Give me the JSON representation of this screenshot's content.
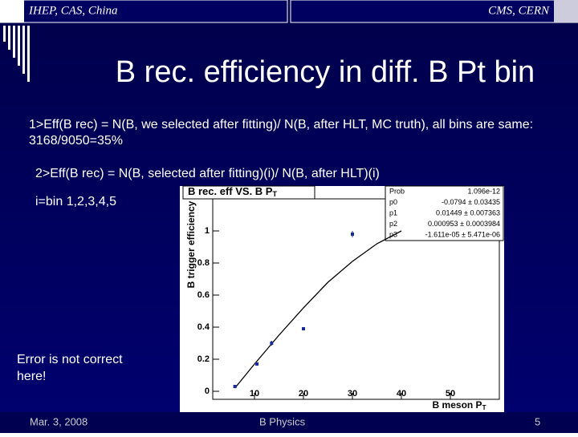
{
  "header": {
    "left": "IHEP, CAS, China",
    "right": "CMS, CERN"
  },
  "title": "B rec. efficiency in diff. B Pt bin",
  "bullets": [
    "1>Eff(B rec) = N(B, we selected after fitting)/ N(B, after HLT, MC truth), all bins are same: 3168/9050=35%",
    "2>Eff(B rec) = N(B, selected after fitting)(i)/ N(B, after HLT)(i)",
    "i=bin 1,2,3,4,5"
  ],
  "note": [
    "Error is not correct",
    "here!"
  ],
  "footer": {
    "date": "Mar. 3, 2008",
    "topic": "B Physics",
    "page": "5"
  },
  "chart_data": {
    "type": "scatter",
    "title": "B rec. eff VS. B P",
    "title_sub": "T",
    "x_label": "B meson P",
    "x_label_sub": "T",
    "y_label": "B trigger efficiency",
    "xlim": [
      0,
      60
    ],
    "ylim": [
      -0.05,
      1.2
    ],
    "xticks": [
      10,
      20,
      30,
      40,
      50
    ],
    "yticks": [
      0,
      0.2,
      0.4,
      0.6,
      0.8,
      1
    ],
    "points": {
      "color": "#1a2a9a",
      "x": [
        6,
        10.5,
        13.5,
        20,
        30
      ],
      "values": [
        0.03,
        0.17,
        0.3,
        0.39,
        0.98
      ],
      "errors": [
        0.005,
        0.01,
        0.015,
        0.01,
        0.02
      ]
    },
    "fit": {
      "color": "#000000",
      "x": [
        6,
        10,
        15,
        20,
        25,
        30,
        35,
        40
      ],
      "values": [
        0.02,
        0.17,
        0.35,
        0.52,
        0.68,
        0.81,
        0.92,
        1.0
      ]
    },
    "stats": [
      [
        "Prob",
        "1.096e-12"
      ],
      [
        "p0",
        "-0.0794 ± 0.03435"
      ],
      [
        "p1",
        "0.01449 ± 0.007363"
      ],
      [
        "p2",
        "0.000953 ± 0.0003984"
      ],
      [
        "p3",
        "-1.611e-05 ± 5.471e-06"
      ]
    ]
  }
}
